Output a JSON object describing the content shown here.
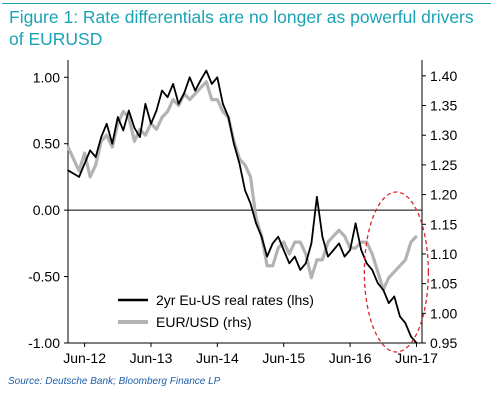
{
  "header": {
    "title": "Figure 1: Rate differentials are no longer as powerful drivers of EURUSD"
  },
  "footer": {
    "source": "Source: Deutsche Bank; Bloomberg Finance LP"
  },
  "colors": {
    "title": "#1aa3b5",
    "rates_series": "#000000",
    "eurusd_series": "#b3b3b3",
    "highlight_ellipse": "#d9252b",
    "source": "#1f5fa8"
  },
  "chart_data": {
    "type": "line",
    "title": "Figure 1: Rate differentials are no longer as powerful drivers of EURUSD",
    "x_tick_labels": [
      "Jun-12",
      "Jun-13",
      "Jun-14",
      "Jun-15",
      "Jun-16",
      "Jun-17"
    ],
    "xlim": [
      "2012-03",
      "2017-07"
    ],
    "y_left": {
      "ylim": [
        -1.0,
        1.1
      ],
      "ticks": [
        "1.00",
        "0.50",
        "0.00",
        "-0.50",
        "-1.00"
      ]
    },
    "y_right": {
      "ylim": [
        0.95,
        1.42
      ],
      "ticks": [
        "1.40",
        "1.35",
        "1.30",
        "1.25",
        "1.20",
        "1.15",
        "1.10",
        "1.05",
        "1.00",
        "0.95"
      ]
    },
    "legend": {
      "position": "bottom-center",
      "entries": [
        "2yr Eu-US real rates (lhs)",
        "EUR/USD (rhs)"
      ]
    },
    "annotations": [
      {
        "type": "dashed-ellipse",
        "around": "2016-10 to 2017-06"
      }
    ],
    "series": [
      {
        "name": "2yr Eu-US real rates (lhs)",
        "axis": "left",
        "x": [
          "2012-03",
          "2012-05",
          "2012-06",
          "2012-07",
          "2012-08",
          "2012-09",
          "2012-10",
          "2012-11",
          "2012-12",
          "2013-01",
          "2013-02",
          "2013-03",
          "2013-04",
          "2013-05",
          "2013-06",
          "2013-07",
          "2013-08",
          "2013-09",
          "2013-10",
          "2013-11",
          "2013-12",
          "2014-01",
          "2014-02",
          "2014-03",
          "2014-04",
          "2014-05",
          "2014-06",
          "2014-07",
          "2014-08",
          "2014-09",
          "2014-10",
          "2014-11",
          "2014-12",
          "2015-01",
          "2015-02",
          "2015-03",
          "2015-04",
          "2015-05",
          "2015-06",
          "2015-07",
          "2015-08",
          "2015-09",
          "2015-10",
          "2015-11",
          "2015-12",
          "2016-01",
          "2016-02",
          "2016-03",
          "2016-04",
          "2016-05",
          "2016-06",
          "2016-07",
          "2016-08",
          "2016-09",
          "2016-10",
          "2016-11",
          "2016-12",
          "2017-01",
          "2017-02",
          "2017-03",
          "2017-04",
          "2017-05",
          "2017-06"
        ],
        "values": [
          0.3,
          0.25,
          0.35,
          0.45,
          0.4,
          0.55,
          0.65,
          0.5,
          0.7,
          0.6,
          0.75,
          0.62,
          0.55,
          0.8,
          0.65,
          0.75,
          0.9,
          0.85,
          0.95,
          0.8,
          0.88,
          1.0,
          0.9,
          0.98,
          1.05,
          0.95,
          1.0,
          0.8,
          0.7,
          0.5,
          0.35,
          0.15,
          0.05,
          -0.1,
          -0.2,
          -0.35,
          -0.25,
          -0.2,
          -0.3,
          -0.4,
          -0.35,
          -0.45,
          -0.4,
          -0.25,
          0.1,
          -0.2,
          -0.35,
          -0.3,
          -0.25,
          -0.35,
          -0.3,
          -0.1,
          -0.3,
          -0.4,
          -0.45,
          -0.55,
          -0.6,
          -0.7,
          -0.65,
          -0.8,
          -0.85,
          -0.95,
          -1.0
        ]
      },
      {
        "name": "EUR/USD (rhs)",
        "axis": "right",
        "x": [
          "2012-03",
          "2012-05",
          "2012-06",
          "2012-07",
          "2012-08",
          "2012-09",
          "2012-10",
          "2012-11",
          "2012-12",
          "2013-01",
          "2013-02",
          "2013-03",
          "2013-04",
          "2013-05",
          "2013-06",
          "2013-07",
          "2013-08",
          "2013-09",
          "2013-10",
          "2013-11",
          "2013-12",
          "2014-01",
          "2014-02",
          "2014-03",
          "2014-04",
          "2014-05",
          "2014-06",
          "2014-07",
          "2014-08",
          "2014-09",
          "2014-10",
          "2014-11",
          "2014-12",
          "2015-01",
          "2015-02",
          "2015-03",
          "2015-04",
          "2015-05",
          "2015-06",
          "2015-07",
          "2015-08",
          "2015-09",
          "2015-10",
          "2015-11",
          "2015-12",
          "2016-01",
          "2016-02",
          "2016-03",
          "2016-04",
          "2016-05",
          "2016-06",
          "2016-07",
          "2016-08",
          "2016-09",
          "2016-10",
          "2016-11",
          "2016-12",
          "2017-01",
          "2017-02",
          "2017-03",
          "2017-04",
          "2017-05",
          "2017-06"
        ],
        "values": [
          1.28,
          1.24,
          1.27,
          1.23,
          1.25,
          1.29,
          1.3,
          1.28,
          1.32,
          1.34,
          1.33,
          1.29,
          1.31,
          1.3,
          1.32,
          1.31,
          1.33,
          1.34,
          1.36,
          1.35,
          1.37,
          1.36,
          1.37,
          1.38,
          1.39,
          1.36,
          1.36,
          1.34,
          1.33,
          1.29,
          1.26,
          1.25,
          1.23,
          1.16,
          1.13,
          1.08,
          1.08,
          1.11,
          1.12,
          1.1,
          1.12,
          1.12,
          1.1,
          1.06,
          1.09,
          1.09,
          1.12,
          1.13,
          1.14,
          1.13,
          1.11,
          1.11,
          1.12,
          1.12,
          1.1,
          1.07,
          1.04,
          1.06,
          1.07,
          1.08,
          1.09,
          1.12,
          1.13
        ]
      }
    ]
  }
}
